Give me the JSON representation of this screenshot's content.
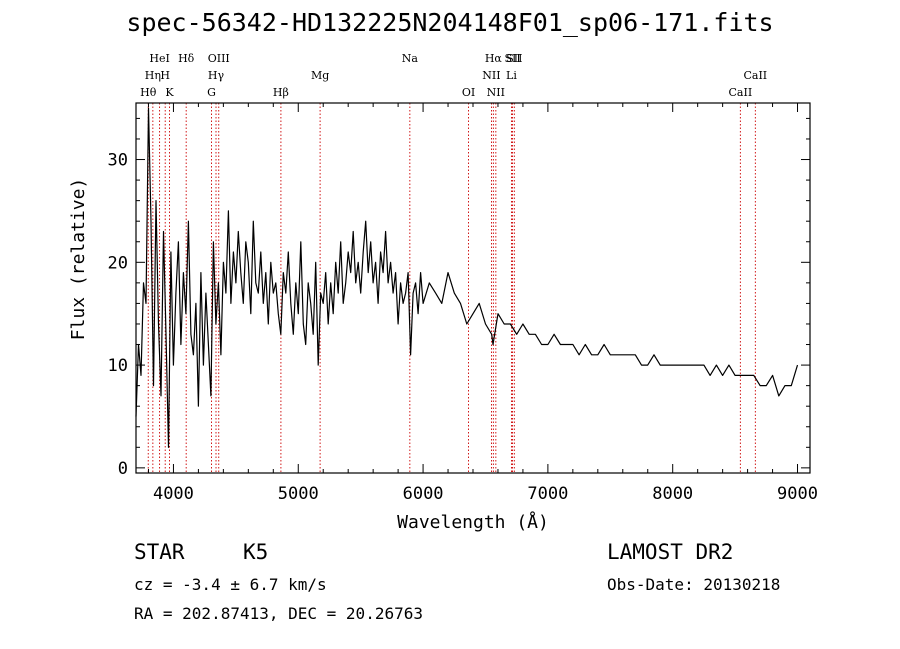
{
  "title": "spec-56342-HD132225N204148F01_sp06-171.fits",
  "info": {
    "class_label": "STAR",
    "subclass_label": "K5",
    "survey_label": "LAMOST DR2",
    "cz_text": "cz = -3.4 ± 6.7 km/s",
    "obs_date_text": "Obs-Date: 20130218",
    "coords_text": "RA = 202.87413, DEC =  20.26763"
  },
  "chart_data": {
    "type": "line",
    "title": "spec-56342-HD132225N204148F01_sp06-171.fits",
    "xlabel": "Wavelength (Å)",
    "ylabel": "Flux (relative)",
    "xlim": [
      3700,
      9100
    ],
    "ylim": [
      -0.5,
      35.5
    ],
    "xticks": [
      4000,
      5000,
      6000,
      7000,
      8000,
      9000
    ],
    "yticks": [
      0,
      10,
      20,
      30
    ],
    "grid": false,
    "legend": "none",
    "line_color": "#000000",
    "marker_color": "#cc0000",
    "spectral_lines": [
      {
        "name": "Hθ",
        "wavelength": 3798,
        "row": 3
      },
      {
        "name": "Hη",
        "wavelength": 3835,
        "row": 2
      },
      {
        "name": "HeI",
        "wavelength": 3889,
        "row": 1
      },
      {
        "name": "H",
        "wavelength": 3934,
        "row": 2
      },
      {
        "name": "K",
        "wavelength": 3968,
        "row": 3
      },
      {
        "name": "Hδ",
        "wavelength": 4102,
        "row": 1
      },
      {
        "name": "G",
        "wavelength": 4305,
        "row": 3
      },
      {
        "name": "Hγ",
        "wavelength": 4341,
        "row": 2
      },
      {
        "name": "OIII",
        "wavelength": 4363,
        "row": 1
      },
      {
        "name": "Hβ",
        "wavelength": 4861,
        "row": 3
      },
      {
        "name": "Mg",
        "wavelength": 5175,
        "row": 2
      },
      {
        "name": "Na",
        "wavelength": 5894,
        "row": 1
      },
      {
        "name": "OI",
        "wavelength": 6364,
        "row": 3
      },
      {
        "name": "NII",
        "wavelength": 6548,
        "row": 2
      },
      {
        "name": "Hα",
        "wavelength": 6563,
        "row": 1
      },
      {
        "name": "NII",
        "wavelength": 6583,
        "row": 3
      },
      {
        "name": "SII",
        "wavelength": 6717,
        "row": 1
      },
      {
        "name": "Li",
        "wavelength": 6708,
        "row": 2
      },
      {
        "name": "SII",
        "wavelength": 6731,
        "row": 1
      },
      {
        "name": "CaII",
        "wavelength": 8542,
        "row": 3
      },
      {
        "name": "CaII",
        "wavelength": 8662,
        "row": 2
      }
    ],
    "x": [
      3700,
      3720,
      3740,
      3760,
      3780,
      3800,
      3820,
      3840,
      3860,
      3880,
      3900,
      3920,
      3940,
      3960,
      3980,
      4000,
      4020,
      4040,
      4060,
      4080,
      4100,
      4120,
      4140,
      4160,
      4180,
      4200,
      4220,
      4240,
      4260,
      4280,
      4300,
      4320,
      4340,
      4360,
      4380,
      4400,
      4420,
      4440,
      4460,
      4480,
      4500,
      4520,
      4540,
      4560,
      4580,
      4600,
      4620,
      4640,
      4660,
      4680,
      4700,
      4720,
      4740,
      4760,
      4780,
      4800,
      4820,
      4840,
      4860,
      4880,
      4900,
      4920,
      4940,
      4960,
      4980,
      5000,
      5020,
      5040,
      5060,
      5080,
      5100,
      5120,
      5140,
      5160,
      5180,
      5200,
      5220,
      5240,
      5260,
      5280,
      5300,
      5320,
      5340,
      5360,
      5380,
      5400,
      5420,
      5440,
      5460,
      5480,
      5500,
      5520,
      5540,
      5560,
      5580,
      5600,
      5620,
      5640,
      5660,
      5680,
      5700,
      5720,
      5740,
      5760,
      5780,
      5800,
      5820,
      5840,
      5860,
      5880,
      5900,
      5920,
      5940,
      5960,
      5980,
      6000,
      6050,
      6100,
      6150,
      6200,
      6250,
      6300,
      6350,
      6400,
      6450,
      6500,
      6550,
      6560,
      6600,
      6650,
      6700,
      6750,
      6800,
      6850,
      6900,
      6950,
      7000,
      7050,
      7100,
      7150,
      7200,
      7250,
      7300,
      7350,
      7400,
      7450,
      7500,
      7550,
      7600,
      7650,
      7700,
      7750,
      7800,
      7850,
      7900,
      7950,
      8000,
      8050,
      8100,
      8150,
      8200,
      8250,
      8300,
      8350,
      8400,
      8450,
      8500,
      8550,
      8600,
      8650,
      8700,
      8750,
      8800,
      8850,
      8900,
      8950,
      9000
    ],
    "y": [
      5,
      12,
      9,
      18,
      16,
      35,
      24,
      8,
      26,
      14,
      7,
      23,
      13,
      2,
      21,
      10,
      17,
      22,
      12,
      19,
      15,
      24,
      13,
      11,
      16,
      6,
      19,
      10,
      17,
      12,
      7,
      22,
      14,
      18,
      11,
      20,
      17,
      25,
      16,
      21,
      18,
      23,
      19,
      16,
      22,
      20,
      15,
      24,
      18,
      17,
      21,
      16,
      19,
      14,
      20,
      17,
      18,
      15,
      13,
      19,
      17,
      21,
      16,
      13,
      18,
      15,
      22,
      14,
      12,
      18,
      16,
      13,
      20,
      10,
      17,
      16,
      19,
      14,
      18,
      15,
      20,
      17,
      22,
      16,
      18,
      21,
      19,
      23,
      18,
      20,
      17,
      21,
      24,
      19,
      22,
      18,
      20,
      16,
      21,
      19,
      23,
      18,
      20,
      17,
      19,
      14,
      18,
      16,
      17,
      19,
      11,
      17,
      18,
      15,
      19,
      16,
      18,
      17,
      16,
      19,
      17,
      16,
      14,
      15,
      16,
      14,
      13,
      12,
      15,
      14,
      14,
      13,
      14,
      13,
      13,
      12,
      12,
      13,
      12,
      12,
      12,
      11,
      12,
      11,
      11,
      12,
      11,
      11,
      11,
      11,
      11,
      10,
      10,
      11,
      10,
      10,
      10,
      10,
      10,
      10,
      10,
      10,
      9,
      10,
      9,
      10,
      9,
      9,
      9,
      9,
      8,
      8,
      9,
      7,
      8,
      8,
      10
    ]
  }
}
